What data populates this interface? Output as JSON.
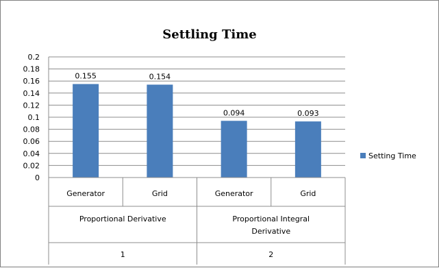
{
  "chart_data": {
    "type": "bar",
    "title": "Settling Time",
    "ylim": [
      0,
      0.2
    ],
    "yticks": [
      "0.2",
      "0.18",
      "0.16",
      "0.14",
      "0.12",
      "0.1",
      "0.08",
      "0.06",
      "0.04",
      "0.02",
      "0"
    ],
    "ytick_values": [
      0.2,
      0.18,
      0.16,
      0.14,
      0.12,
      0.1,
      0.08,
      0.06,
      0.04,
      0.02,
      0
    ],
    "grid": true,
    "legend_position": "right",
    "categories": [
      {
        "label": "Generator",
        "group": "Proportional Derivative",
        "index": "1"
      },
      {
        "label": "Grid",
        "group": "Proportional Derivative",
        "index": "1"
      },
      {
        "label": "Generator",
        "group": "Proportional Integral Derivative",
        "index": "2"
      },
      {
        "label": "Grid",
        "group": "Proportional Integral Derivative",
        "index": "2"
      }
    ],
    "groups": [
      {
        "name": [
          "Proportional Derivative"
        ],
        "index": "1"
      },
      {
        "name": [
          "Proportional Integral",
          "Derivative"
        ],
        "index": "2"
      }
    ],
    "series": [
      {
        "name": "Setting Time",
        "values": [
          0.155,
          0.154,
          0.094,
          0.093
        ],
        "labels": [
          "0.155",
          "0.154",
          "0.094",
          "0.093"
        ],
        "color": "#4a7ebb"
      }
    ]
  }
}
